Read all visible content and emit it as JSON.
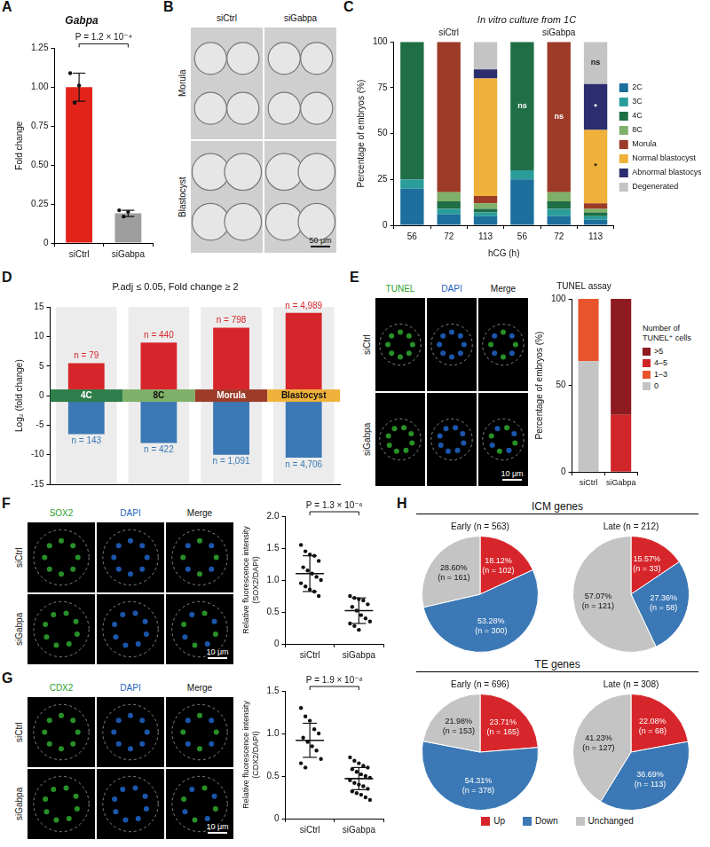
{
  "chart_data": [
    {
      "panel": "A",
      "type": "bar",
      "title": "Gabpa",
      "y_label": "Fold change",
      "categories": [
        "siCtrl",
        "siGabpa"
      ],
      "values": [
        1.0,
        0.19
      ],
      "errors": [
        0.09,
        0.02
      ],
      "points": [
        [
          1.09,
          0.9,
          1.01
        ],
        [
          0.21,
          0.17,
          0.2
        ]
      ],
      "colors": [
        "#e2231a",
        "#9e9e9e"
      ],
      "ylim": [
        0,
        1.25
      ],
      "yticks": [
        0,
        0.25,
        {
          "value": 0.5,
          "label": "0.50"
        },
        {
          "value": 0.75,
          "label": "0.75"
        },
        {
          "value": 1,
          "label": "1.00"
        },
        1.25
      ],
      "annotation": "P = 1.2 × 10⁻⁴",
      "grid": false
    },
    {
      "panel": "C",
      "type": "bar",
      "stacked": true,
      "title": "In vitro culture from 1C",
      "group_labels": [
        "siCtrl",
        "siGabpa"
      ],
      "categories": [
        "56",
        "72",
        "113",
        "56",
        "72",
        "113"
      ],
      "x_label": "hCG (h)",
      "y_label": "Percentage of embryos (%)",
      "ylim": [
        0,
        100
      ],
      "yticks": [
        0,
        25,
        50,
        75,
        100
      ],
      "legend": "right",
      "grid": false,
      "series": [
        {
          "name": "2C",
          "color": "#1c6f9c",
          "values": [
            20,
            6,
            5,
            25,
            5,
            3
          ]
        },
        {
          "name": "3C",
          "color": "#2a9d9a",
          "values": [
            5,
            3,
            2,
            5,
            4,
            2
          ]
        },
        {
          "name": "4C",
          "color": "#1f6e45",
          "values": [
            75,
            4,
            2,
            70,
            4,
            2
          ]
        },
        {
          "name": "8C",
          "color": "#7fb069",
          "values": [
            0,
            5,
            3,
            0,
            5,
            2
          ]
        },
        {
          "name": "Morula",
          "color": "#9c3b28",
          "values": [
            0,
            82,
            4,
            0,
            82,
            3
          ]
        },
        {
          "name": "Normal blastocyst",
          "color": "#f0b13a",
          "values": [
            0,
            0,
            64,
            0,
            0,
            40
          ]
        },
        {
          "name": "Abnormal blastocyst",
          "color": "#2b2d6e",
          "values": [
            0,
            0,
            5,
            0,
            0,
            25
          ]
        },
        {
          "name": "Degenerated",
          "color": "#c4c4c4",
          "values": [
            0,
            0,
            15,
            0,
            0,
            23
          ]
        }
      ],
      "annotations": [
        {
          "category": 3,
          "series": "4C",
          "text": "ns"
        },
        {
          "category": 4,
          "series": "Morula",
          "text": "ns"
        },
        {
          "category": 5,
          "series": "Degenerated",
          "text": "ns"
        },
        {
          "category": 5,
          "series": "Normal blastocyst",
          "text": "*"
        },
        {
          "category": 5,
          "series": "Abnormal blastocyst",
          "text": "*"
        }
      ]
    },
    {
      "panel": "D",
      "type": "range",
      "title": "P.adj ≤ 0.05, Fold change ≥ 2",
      "y_label": "Log₂ (fold change)",
      "categories": [
        "4C",
        "8C",
        "Morula",
        "Blastocyst"
      ],
      "category_colors": [
        "#2e7d4a",
        "#7fb069",
        "#9c3b28",
        "#f0b13a"
      ],
      "ylim": [
        -15,
        15
      ],
      "yticks": [
        -15,
        -10,
        -5,
        0,
        5,
        10,
        15
      ],
      "tick_labels": "y",
      "grid": false,
      "series": [
        {
          "color": "#d7262b",
          "values": [
            [
              1,
              5.5
            ],
            [
              1,
              9
            ],
            [
              1,
              11.5
            ],
            [
              1,
              14
            ]
          ],
          "labels": [
            "n = 79",
            "n = 440",
            "n = 798",
            "n = 4,989"
          ]
        },
        {
          "color": "#3b78b5",
          "values": [
            [
              -6.5,
              -1
            ],
            [
              -8,
              -1
            ],
            [
              -10,
              -1
            ],
            [
              -10.5,
              -1
            ]
          ],
          "labels": [
            "n = 143",
            "n = 422",
            "n = 1,091",
            "n = 4,706"
          ]
        }
      ]
    },
    {
      "panel": "E",
      "type": "bar",
      "stacked": true,
      "title": "TUNEL assay",
      "y_label": "Percentage of embryos (%)",
      "categories": [
        "siCtrl",
        "siGabpa"
      ],
      "ylim": [
        0,
        100
      ],
      "yticks": [
        0,
        50,
        100
      ],
      "legend": "right",
      "legend_title": "Number of TUNEL⁺ cells",
      "grid": false,
      "series": [
        {
          "name": "0",
          "color": "#c4c4c4",
          "values": [
            64,
            0
          ]
        },
        {
          "name": "1–3",
          "color": "#e8542c",
          "values": [
            36,
            0
          ]
        },
        {
          "name": "4–5",
          "color": "#d0262a",
          "values": [
            0,
            33
          ]
        },
        {
          "name": ">5",
          "color": "#8e1b1f",
          "values": [
            0,
            67
          ]
        }
      ]
    },
    {
      "panel": "F",
      "type": "dot",
      "categories": [
        "siCtrl",
        "siGabpa"
      ],
      "points": [
        [
          1.55,
          1.45,
          1.4,
          1.38,
          1.3,
          1.2,
          1.15,
          1.1,
          1.05,
          1.0,
          0.95,
          0.9,
          0.85,
          0.82,
          0.75
        ],
        [
          0.75,
          0.72,
          0.7,
          0.68,
          0.62,
          0.58,
          0.52,
          0.45,
          0.4,
          0.35,
          0.32,
          0.28,
          0.22
        ]
      ],
      "mean": [
        1.1,
        0.52
      ],
      "sd": [
        0.28,
        0.2
      ],
      "y_label": "Relative fluorescence intensity (SOX2/DAPI)",
      "ylim": [
        0,
        2
      ],
      "yticks": [
        0,
        0.5,
        {
          "value": 1,
          "label": "1.0"
        },
        1.5,
        {
          "value": 2,
          "label": "2.0"
        }
      ],
      "annotation": "P = 1.3 × 10⁻⁶",
      "grid": false
    },
    {
      "panel": "G",
      "type": "dot",
      "categories": [
        "siCtrl",
        "siGabpa"
      ],
      "points": [
        [
          1.3,
          1.2,
          1.15,
          1.05,
          1.0,
          0.95,
          0.9,
          0.85,
          0.8,
          0.7,
          0.65,
          0.6
        ],
        [
          0.72,
          0.68,
          0.65,
          0.62,
          0.6,
          0.58,
          0.55,
          0.52,
          0.5,
          0.48,
          0.45,
          0.42,
          0.4,
          0.38,
          0.35,
          0.32,
          0.3,
          0.28,
          0.25,
          0.22
        ]
      ],
      "mean": [
        0.92,
        0.47
      ],
      "sd": [
        0.2,
        0.13
      ],
      "y_label": "Relative fluorescence intensity (CDX2/DAPI)",
      "ylim": [
        0,
        1.5
      ],
      "yticks": [
        0,
        0.5,
        {
          "value": 1,
          "label": "1.0"
        },
        1.5
      ],
      "annotation": "P = 1.9 × 10⁻⁸",
      "grid": false
    },
    {
      "panel": "H",
      "type": "pie",
      "categories": [
        "Up",
        "Down",
        "Unchanged"
      ],
      "colors": [
        "#d7262b",
        "#3b78b5",
        "#c4c4c4"
      ],
      "legend": "bottom",
      "groups": [
        {
          "title": "ICM genes",
          "pies": [
            {
              "title": "Early (n = 563)",
              "values": [
                18.12,
                53.28,
                28.6
              ],
              "value_labels": [
                "18.12%\n(n = 102)",
                "53.28%\n(n = 300)",
                "28.60%\n(n = 161)"
              ]
            },
            {
              "title": "Late (n = 212)",
              "values": [
                15.57,
                27.36,
                57.07
              ],
              "value_labels": [
                "15.57%\n(n = 33)",
                "27.36%\n(n = 58)",
                "57.07%\n(n = 121)"
              ]
            }
          ]
        },
        {
          "title": "TE genes",
          "pies": [
            {
              "title": "Early (n = 696)",
              "values": [
                23.71,
                54.31,
                21.98
              ],
              "value_labels": [
                "23.71%\n(n = 165)",
                "54.31%\n(n = 378)",
                "21.98%\n(n = 153)"
              ]
            },
            {
              "title": "Late (n = 308)",
              "values": [
                22.08,
                36.69,
                41.23
              ],
              "value_labels": [
                "22.08%\n(n = 68)",
                "36.69%\n(n = 113)",
                "41.23%\n(n = 127)"
              ]
            }
          ]
        }
      ]
    }
  ],
  "image_panels": [
    {
      "panel": "B",
      "columns": [
        "siCtrl",
        "siGabpa"
      ],
      "rows": [
        "Morula",
        "Blastocyst"
      ],
      "scale_bar": "50 μm"
    },
    {
      "panel": "E",
      "columns": [
        "TUNEL",
        "DAPI",
        "Merge"
      ],
      "column_colors": [
        "#2ca02c",
        "#1f5fbf",
        "#111111"
      ],
      "rows": [
        "siCtrl",
        "siGabpa"
      ],
      "scale_bar": "10 μm"
    },
    {
      "panel": "F",
      "columns": [
        "SOX2",
        "DAPI",
        "Merge"
      ],
      "column_colors": [
        "#2ca02c",
        "#1f5fbf",
        "#111111"
      ],
      "rows": [
        "siCtrl",
        "siGabpa"
      ],
      "scale_bar": "10 μm"
    },
    {
      "panel": "G",
      "columns": [
        "CDX2",
        "DAPI",
        "Merge"
      ],
      "column_colors": [
        "#2ca02c",
        "#1f5fbf",
        "#111111"
      ],
      "rows": [
        "siCtrl",
        "siGabpa"
      ],
      "scale_bar": "10 μm"
    }
  ]
}
